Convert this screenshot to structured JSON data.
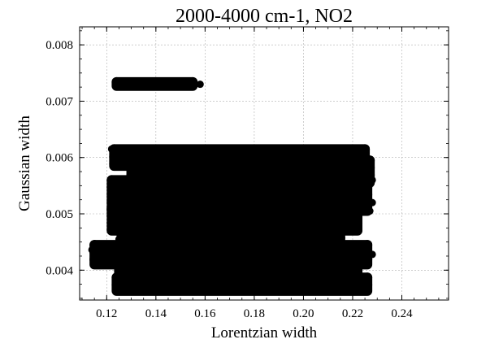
{
  "chart_data": {
    "type": "scatter",
    "title": "2000-4000 cm-1, NO2",
    "xlabel": "Lorentzian width",
    "ylabel": "Gaussian width",
    "xlim": [
      0.109,
      0.259
    ],
    "ylim": [
      0.00347,
      0.00832
    ],
    "xticks": [
      0.12,
      0.14,
      0.16,
      0.18,
      0.2,
      0.22,
      0.24
    ],
    "xtick_labels": [
      "0.12",
      "0.14",
      "0.16",
      "0.18",
      "0.20",
      "0.22",
      "0.24"
    ],
    "yticks": [
      0.004,
      0.005,
      0.006,
      0.007,
      0.008
    ],
    "ytick_labels": [
      "0.004",
      "0.005",
      "0.006",
      "0.007",
      "0.008"
    ],
    "grid": true,
    "color": "#000000",
    "bands": [
      {
        "x0": 0.124,
        "x1": 0.155,
        "y0": 0.00727,
        "y1": 0.00734
      },
      {
        "x0": 0.123,
        "x1": 0.225,
        "y0": 0.00585,
        "y1": 0.00615
      },
      {
        "x0": 0.13,
        "x1": 0.227,
        "y0": 0.00555,
        "y1": 0.00595
      },
      {
        "x0": 0.122,
        "x1": 0.226,
        "y0": 0.00505,
        "y1": 0.0056
      },
      {
        "x0": 0.122,
        "x1": 0.222,
        "y0": 0.0047,
        "y1": 0.0051
      },
      {
        "x0": 0.126,
        "x1": 0.215,
        "y0": 0.00445,
        "y1": 0.0047
      },
      {
        "x0": 0.115,
        "x1": 0.226,
        "y0": 0.0041,
        "y1": 0.00445
      },
      {
        "x0": 0.125,
        "x1": 0.222,
        "y0": 0.00385,
        "y1": 0.00412
      },
      {
        "x0": 0.124,
        "x1": 0.226,
        "y0": 0.00363,
        "y1": 0.00387
      }
    ],
    "points": [
      {
        "x": 0.158,
        "y": 0.0073
      },
      {
        "x": 0.122,
        "y": 0.00615
      },
      {
        "x": 0.228,
        "y": 0.0056
      },
      {
        "x": 0.228,
        "y": 0.0052
      },
      {
        "x": 0.227,
        "y": 0.00505
      },
      {
        "x": 0.222,
        "y": 0.00478
      },
      {
        "x": 0.114,
        "y": 0.00436
      },
      {
        "x": 0.228,
        "y": 0.00428
      },
      {
        "x": 0.123,
        "y": 0.00436
      },
      {
        "x": 0.226,
        "y": 0.00372
      },
      {
        "x": 0.124,
        "y": 0.00365
      },
      {
        "x": 0.13,
        "y": 0.0059
      },
      {
        "x": 0.122,
        "y": 0.00505
      },
      {
        "x": 0.125,
        "y": 0.00455
      }
    ]
  }
}
